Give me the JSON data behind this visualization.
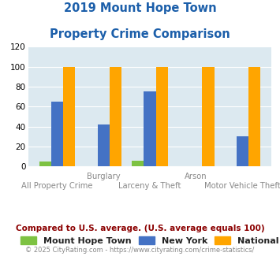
{
  "title_line1": "2019 Mount Hope Town",
  "title_line2": "Property Crime Comparison",
  "title_color": "#1c5faa",
  "categories": [
    "All Property Crime",
    "Burglary",
    "Larceny & Theft",
    "Arson",
    "Motor Vehicle Theft"
  ],
  "x_labels_top": [
    "",
    "Burglary",
    "",
    "Arson",
    ""
  ],
  "x_labels_bottom": [
    "All Property Crime",
    "",
    "Larceny & Theft",
    "",
    "Motor Vehicle Theft"
  ],
  "mount_hope_values": [
    5,
    0,
    6,
    0,
    0
  ],
  "new_york_values": [
    65,
    42,
    75,
    0,
    30
  ],
  "national_values": [
    100,
    100,
    100,
    100,
    100
  ],
  "mount_hope_color": "#7dc242",
  "new_york_color": "#4472c4",
  "national_color": "#ffa500",
  "bg_color": "#dce9f0",
  "ylim": [
    0,
    120
  ],
  "yticks": [
    0,
    20,
    40,
    60,
    80,
    100,
    120
  ],
  "legend_labels": [
    "Mount Hope Town",
    "New York",
    "National"
  ],
  "footnote1": "Compared to U.S. average. (U.S. average equals 100)",
  "footnote2": "© 2025 CityRating.com - https://www.cityrating.com/crime-statistics/",
  "footnote1_color": "#8b0000",
  "footnote2_color": "#888888"
}
